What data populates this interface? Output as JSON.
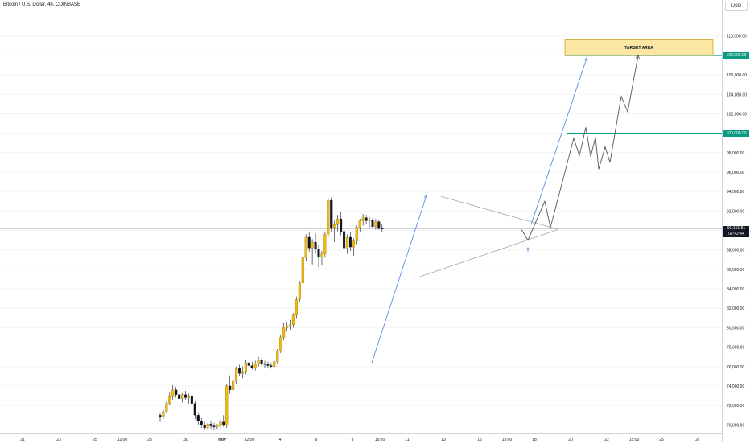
{
  "symbol": {
    "title": "Bitcoin / U.S. Dollar, 4h, COINBASE"
  },
  "currency": "USD",
  "price_axis": {
    "ticks": [
      "110,000.00",
      "108,000.00",
      "106,000.00",
      "104,000.00",
      "102,000.00",
      "100,000.00",
      "98,000.00",
      "96,000.00",
      "94,000.00",
      "92,000.00",
      "90,000.00",
      "88,000.00",
      "86,000.00",
      "84,000.00",
      "82,000.00",
      "80,000.00",
      "78,000.00",
      "76,000.00",
      "74,000.00",
      "72,000.00",
      "70,000.00"
    ],
    "level_108": "108,000.00",
    "level_100": "100,000.00",
    "last_price": "90,161.81",
    "countdown": "02:42:44"
  },
  "time_axis": {
    "ticks": [
      "21",
      "23",
      "25",
      "12:00",
      "28",
      "30",
      "Nov",
      "12:00",
      "4",
      "6",
      "8",
      "15:00",
      "11",
      "13",
      "15",
      "15:00",
      "18",
      "20",
      "22",
      "15:00",
      "25",
      "27"
    ]
  },
  "annotations": {
    "target_area_label": "TARGET AREA"
  },
  "colors": {
    "up": "#f0b90b",
    "down": "#131722",
    "level": "#089981",
    "arrow": "#5b8def",
    "target_fill": "#fbe6a2",
    "target_border": "#c9a227",
    "path": "#555555"
  },
  "chart_data": {
    "type": "candlestick",
    "interval": "4h",
    "y_ticks": [
      70000,
      72000,
      74000,
      76000,
      78000,
      80000,
      82000,
      84000,
      86000,
      88000,
      90000,
      92000,
      94000,
      96000,
      98000,
      100000,
      102000,
      104000,
      106000,
      108000,
      110000
    ],
    "ylim": [
      69200,
      113700
    ],
    "horizontal_levels": [
      108000,
      100000
    ],
    "target_area": {
      "label": "TARGET AREA",
      "y_range": [
        108000,
        109600
      ]
    },
    "last_price": 90161.81,
    "candles": [
      [
        71000,
        71200,
        70300,
        70800
      ],
      [
        70800,
        71600,
        70600,
        71400
      ],
      [
        71400,
        72400,
        71200,
        72200
      ],
      [
        72200,
        73400,
        72000,
        73000
      ],
      [
        73000,
        74100,
        72600,
        73600
      ],
      [
        73600,
        73900,
        72800,
        73100
      ],
      [
        73100,
        73400,
        72400,
        72700
      ],
      [
        72700,
        73300,
        72300,
        73100
      ],
      [
        73100,
        73500,
        72600,
        72800
      ],
      [
        72800,
        73200,
        72200,
        73000
      ],
      [
        73000,
        73300,
        71800,
        72200
      ],
      [
        72200,
        72500,
        70600,
        71000
      ],
      [
        71000,
        71300,
        70000,
        70400
      ],
      [
        70400,
        70700,
        69700,
        70000
      ],
      [
        70000,
        70300,
        69500,
        69700
      ],
      [
        69700,
        70200,
        69500,
        70100
      ],
      [
        70100,
        70400,
        69600,
        69900
      ],
      [
        69900,
        70200,
        69500,
        69800
      ],
      [
        69800,
        70100,
        69600,
        69950
      ],
      [
        69900,
        70500,
        69600,
        70300
      ],
      [
        70300,
        71000,
        69800,
        69950
      ],
      [
        69950,
        74200,
        69700,
        74000
      ],
      [
        74000,
        75100,
        73200,
        73600
      ],
      [
        73600,
        74800,
        73300,
        74500
      ],
      [
        74500,
        76000,
        74200,
        75800
      ],
      [
        75800,
        76200,
        75000,
        75300
      ],
      [
        75300,
        76000,
        74800,
        75500
      ],
      [
        75500,
        76700,
        75200,
        76400
      ],
      [
        76400,
        76800,
        75800,
        76100
      ],
      [
        76100,
        76500,
        75700,
        75900
      ],
      [
        75900,
        76600,
        75600,
        76300
      ],
      [
        76300,
        77000,
        76000,
        76700
      ],
      [
        76700,
        76900,
        76100,
        76300
      ],
      [
        76300,
        76600,
        75900,
        76200
      ],
      [
        76200,
        76500,
        75900,
        76100
      ],
      [
        76100,
        76400,
        75800,
        76000
      ],
      [
        76000,
        76700,
        75800,
        76500
      ],
      [
        76500,
        77800,
        76300,
        77600
      ],
      [
        77600,
        79200,
        77400,
        79000
      ],
      [
        79000,
        80500,
        78700,
        80000
      ],
      [
        80000,
        80600,
        79600,
        80200
      ],
      [
        80200,
        80800,
        79800,
        80300
      ],
      [
        80300,
        81500,
        80000,
        81300
      ],
      [
        81300,
        83200,
        81000,
        82900
      ],
      [
        82900,
        84800,
        82600,
        84600
      ],
      [
        84600,
        87400,
        84400,
        87200
      ],
      [
        87200,
        89600,
        86900,
        89300
      ],
      [
        89300,
        89900,
        87800,
        88200
      ],
      [
        88200,
        89100,
        86500,
        88800
      ],
      [
        88800,
        89700,
        87600,
        88100
      ],
      [
        88100,
        88600,
        86200,
        87300
      ],
      [
        87300,
        87900,
        86400,
        87600
      ],
      [
        87600,
        89900,
        87200,
        89600
      ],
      [
        89600,
        93400,
        89200,
        93100
      ],
      [
        93100,
        93400,
        89800,
        90200
      ],
      [
        90200,
        91000,
        88800,
        90600
      ],
      [
        90600,
        91600,
        89900,
        91200
      ],
      [
        91200,
        91900,
        89500,
        89900
      ],
      [
        89900,
        90300,
        87800,
        88200
      ],
      [
        88200,
        89600,
        87600,
        89300
      ],
      [
        89300,
        89800,
        87900,
        88300
      ],
      [
        88300,
        89200,
        87400,
        88900
      ],
      [
        88900,
        90500,
        88600,
        90300
      ],
      [
        90300,
        91200,
        89800,
        91000
      ],
      [
        91000,
        91700,
        90500,
        91300
      ],
      [
        91300,
        91600,
        90700,
        91000
      ],
      [
        91000,
        91400,
        90300,
        91100
      ],
      [
        91100,
        91300,
        90200,
        90400
      ],
      [
        90400,
        91200,
        90100,
        90900
      ],
      [
        90900,
        91100,
        90100,
        90200
      ],
      [
        90200,
        90700,
        89800,
        90162
      ]
    ],
    "triangle": {
      "upper_start": 93500,
      "apex": 90100,
      "lower_start": 85200
    },
    "projection_path": [
      90100,
      89000,
      93000,
      90300,
      99500,
      97700,
      100600,
      97600,
      99600,
      96300,
      98600,
      97000,
      103800,
      102200,
      108000
    ]
  }
}
